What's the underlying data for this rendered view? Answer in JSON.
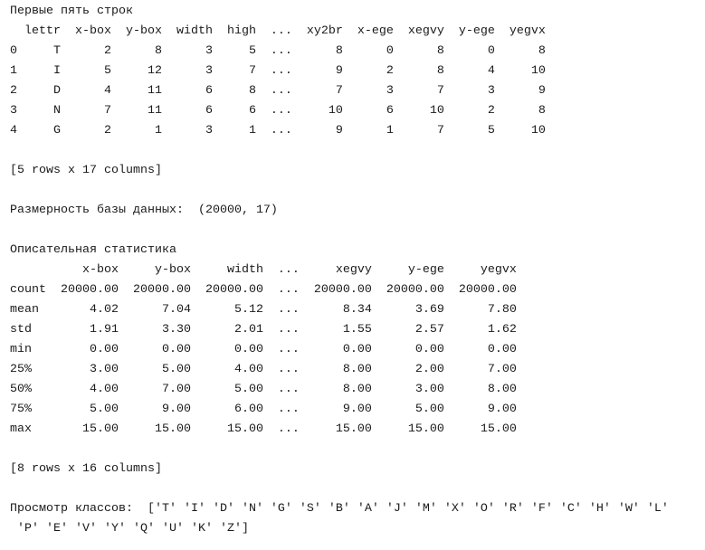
{
  "head_section": {
    "title": "Первые пять строк",
    "header": "  lettr  x-box  y-box  width  high  ...  xy2br  x-ege  xegvy  y-ege  yegvx",
    "rows": [
      "0     T      2      8      3     5  ...      8      0      8      0      8",
      "1     I      5     12      3     7  ...      9      2      8      4     10",
      "2     D      4     11      6     8  ...      7      3      7      3      9",
      "3     N      7     11      6     6  ...     10      6     10      2      8",
      "4     G      2      1      3     1  ...      9      1      7      5     10"
    ],
    "footer": "[5 rows x 17 columns]"
  },
  "shape_line": "Размерность базы данных:  (20000, 17)",
  "describe_section": {
    "title": "Описательная статистика",
    "header": "          x-box     y-box     width  ...     xegvy     y-ege     yegvx",
    "rows": [
      "count  20000.00  20000.00  20000.00  ...  20000.00  20000.00  20000.00",
      "mean       4.02      7.04      5.12  ...      8.34      3.69      7.80",
      "std        1.91      3.30      2.01  ...      1.55      2.57      1.62",
      "min        0.00      0.00      0.00  ...      0.00      0.00      0.00",
      "25%        3.00      5.00      4.00  ...      8.00      2.00      7.00",
      "50%        4.00      7.00      5.00  ...      8.00      3.00      8.00",
      "75%        5.00      9.00      6.00  ...      9.00      5.00      9.00",
      "max       15.00     15.00     15.00  ...     15.00     15.00     15.00"
    ],
    "footer": "[8 rows x 16 columns]"
  },
  "classes_lines": [
    "Просмотр классов:  ['T' 'I' 'D' 'N' 'G' 'S' 'B' 'A' 'J' 'M' 'X' 'O' 'R' 'F' 'C' 'H' 'W' 'L'",
    " 'P' 'E' 'V' 'Y' 'Q' 'U' 'K' 'Z']"
  ]
}
